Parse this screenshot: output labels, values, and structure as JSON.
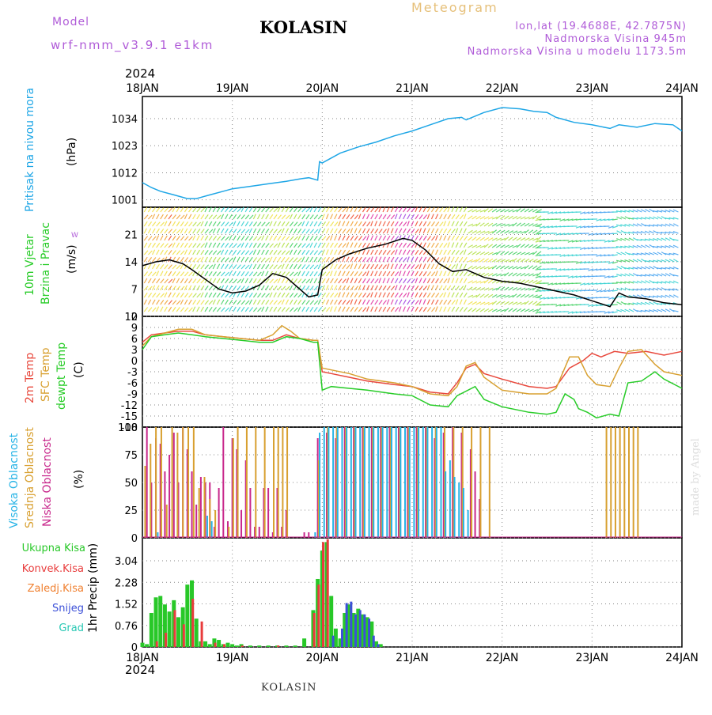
{
  "header": {
    "model_label": "Model",
    "model_version": "wrf-nmm_v3.9.1 e1km",
    "station": "KOLASIN",
    "product": "Meteogram",
    "lonlat": "lon,lat (19.4688E, 42.7875N)",
    "elevation": "Nadmorska Visina 945m",
    "model_elevation": "Nadmorska Visina u modelu 1173.5m",
    "year_top": "2024",
    "year_bottom": "2024",
    "credit": "made by Angel",
    "footer_station": "KOLASIN"
  },
  "colors": {
    "pressure": "#1ea6e6",
    "temp2m": "#e8483c",
    "sfc_temp": "#d8a030",
    "dewpoint": "#28cc28",
    "high_cloud": "#28b4e6",
    "mid_cloud": "#d8a030",
    "low_cloud": "#c8288c",
    "total_precip": "#28c828",
    "convective": "#e83c3c",
    "snow": "#3c50d8",
    "grid": "#888888"
  },
  "time_axis": {
    "labels": [
      "18JAN",
      "19JAN",
      "20JAN",
      "21JAN",
      "22JAN",
      "23JAN",
      "24JAN"
    ]
  },
  "chart_data": [
    {
      "type": "line",
      "title": "",
      "ylabel_name": "Pritisak na nivou mora",
      "ylabel_unit": "(hPa)",
      "ylim": [
        998,
        1043
      ],
      "yticks": [
        "1001",
        "1012",
        "1023",
        "1034"
      ],
      "ytick_values": [
        1001,
        1012,
        1023,
        1034
      ],
      "grid": true,
      "series": [
        {
          "x": [
            0,
            0.1,
            0.2,
            0.35,
            0.5,
            0.6,
            0.75,
            0.9,
            1.0,
            1.2,
            1.4,
            1.6,
            1.75,
            1.85,
            1.95,
            1.97,
            2.0,
            2.1,
            2.2,
            2.4,
            2.6,
            2.8,
            3.0,
            3.2,
            3.4,
            3.55,
            3.6,
            3.8,
            4.0,
            4.2,
            4.35,
            4.5,
            4.6,
            4.8,
            5.0,
            5.2,
            5.3,
            5.5,
            5.7,
            5.9,
            6.0
          ],
          "values": [
            1008,
            1006,
            1004.5,
            1003,
            1001.5,
            1001.5,
            1003,
            1004.5,
            1005.5,
            1006.5,
            1007.5,
            1008.5,
            1009.5,
            1010,
            1009,
            1016.5,
            1016,
            1018,
            1020,
            1022.5,
            1024.5,
            1027,
            1029,
            1031.5,
            1034,
            1034.5,
            1033.5,
            1036.5,
            1038.5,
            1038,
            1037,
            1036.5,
            1034.5,
            1032.5,
            1031.5,
            1030,
            1031.5,
            1030.5,
            1032,
            1031.5,
            1029
          ]
        }
      ]
    },
    {
      "type": "line",
      "title": "",
      "ylabel_name_1": "10m Vjetar",
      "ylabel_name_2": "Brzina i Pravac",
      "ylabel_unit": "(m/s)",
      "ylim": [
        0,
        28
      ],
      "yticks": [
        "0",
        "7",
        "14",
        "21"
      ],
      "ytick_values": [
        0,
        7,
        14,
        21
      ],
      "grid": true,
      "series": [
        {
          "name": "wind speed",
          "x": [
            0,
            0.15,
            0.3,
            0.45,
            0.55,
            0.7,
            0.85,
            1.0,
            1.15,
            1.3,
            1.45,
            1.6,
            1.75,
            1.85,
            1.95,
            2.0,
            2.15,
            2.3,
            2.5,
            2.7,
            2.9,
            3.0,
            3.15,
            3.3,
            3.45,
            3.6,
            3.8,
            4.0,
            4.2,
            4.4,
            4.6,
            4.8,
            5.0,
            5.2,
            5.3,
            5.4,
            5.6,
            5.8,
            6.0
          ],
          "values": [
            13,
            14,
            14.5,
            13.5,
            12,
            9.5,
            7,
            6,
            6.5,
            8,
            11,
            10,
            7,
            5,
            5.5,
            12,
            14.5,
            16,
            17.5,
            18.5,
            20,
            19.5,
            17,
            13.5,
            11.5,
            12,
            10,
            9,
            8.5,
            7.5,
            6.5,
            5.5,
            4,
            2.5,
            6,
            5,
            4.5,
            3.5,
            3
          ]
        }
      ]
    },
    {
      "type": "line",
      "title": "",
      "ylabel_names": [
        "2m Temp",
        "SFC Temp",
        "dewpt Temp"
      ],
      "ylabel_unit": "(C)",
      "ylim": [
        -18,
        12
      ],
      "yticks": [
        "-18",
        "-15",
        "-12",
        "-9",
        "-6",
        "-3",
        "0",
        "3",
        "6",
        "9",
        "12"
      ],
      "ytick_values": [
        -18,
        -15,
        -12,
        -9,
        -6,
        -3,
        0,
        3,
        6,
        9,
        12
      ],
      "grid": true,
      "series": [
        {
          "name": "2m Temp",
          "x": [
            0,
            0.1,
            0.25,
            0.4,
            0.55,
            0.7,
            0.9,
            1.1,
            1.3,
            1.45,
            1.6,
            1.75,
            1.9,
            1.95,
            2.0,
            2.1,
            2.3,
            2.5,
            2.8,
            3.0,
            3.2,
            3.4,
            3.5,
            3.6,
            3.7,
            3.8,
            4.0,
            4.3,
            4.5,
            4.6,
            4.75,
            4.9,
            5.0,
            5.1,
            5.25,
            5.4,
            5.6,
            5.8,
            6.0
          ],
          "values": [
            5,
            7,
            7.5,
            8,
            8,
            7,
            6.5,
            6,
            5.5,
            5.5,
            7,
            6,
            5.5,
            5.5,
            -3,
            -3.5,
            -4.5,
            -5.5,
            -6.5,
            -7,
            -8.5,
            -9,
            -6,
            -2,
            -1,
            -3.5,
            -5,
            -7,
            -7.5,
            -7,
            -2,
            0,
            2,
            1,
            2.5,
            2,
            2.5,
            1.5,
            2.5
          ]
        },
        {
          "name": "SFC Temp",
          "x": [
            0,
            0.1,
            0.25,
            0.4,
            0.55,
            0.7,
            0.9,
            1.1,
            1.3,
            1.45,
            1.55,
            1.65,
            1.75,
            1.9,
            1.95,
            2.0,
            2.1,
            2.3,
            2.5,
            2.8,
            3.0,
            3.2,
            3.4,
            3.5,
            3.6,
            3.7,
            3.8,
            4.0,
            4.3,
            4.5,
            4.6,
            4.75,
            4.85,
            4.95,
            5.05,
            5.2,
            5.3,
            5.4,
            5.55,
            5.7,
            5.8,
            6.0
          ],
          "values": [
            4,
            6.5,
            7.5,
            8.5,
            8.5,
            7,
            6.5,
            6,
            5.5,
            7,
            9.5,
            8,
            6,
            5.5,
            5.5,
            -2,
            -2.5,
            -3.5,
            -5,
            -6,
            -7,
            -9,
            -9.5,
            -7,
            -1.5,
            -0.5,
            -4.5,
            -8,
            -9,
            -9,
            -7.5,
            1,
            1,
            -4,
            -6.5,
            -7,
            -2,
            2.5,
            3,
            -1,
            -3,
            -4
          ]
        },
        {
          "name": "dewpt Temp",
          "x": [
            0,
            0.1,
            0.25,
            0.4,
            0.55,
            0.7,
            0.9,
            1.1,
            1.3,
            1.45,
            1.6,
            1.75,
            1.9,
            1.95,
            2.0,
            2.1,
            2.3,
            2.5,
            2.8,
            3.0,
            3.2,
            3.4,
            3.5,
            3.7,
            3.8,
            4.0,
            4.3,
            4.5,
            4.6,
            4.7,
            4.8,
            4.85,
            4.95,
            5.05,
            5.2,
            5.3,
            5.4,
            5.55,
            5.7,
            5.8,
            6.0
          ],
          "values": [
            3,
            6.5,
            7,
            7.5,
            7,
            6.5,
            6,
            5.5,
            5,
            5,
            6.5,
            6,
            5,
            5,
            -8,
            -7,
            -7.5,
            -8,
            -9,
            -9.5,
            -12,
            -12.5,
            -9.5,
            -7,
            -10.5,
            -12.5,
            -14,
            -14.5,
            -14,
            -9,
            -10.5,
            -13,
            -14,
            -15.5,
            -14.5,
            -15,
            -6,
            -5.5,
            -3,
            -5,
            -7.5
          ]
        }
      ]
    },
    {
      "type": "bar",
      "title": "",
      "ylabel_names": [
        "Visoka Oblacnost",
        "Srednja Oblacnost",
        "Niska Oblacnost"
      ],
      "ylabel_unit": "(%)",
      "ylim": [
        0,
        100
      ],
      "yticks": [
        "0",
        "25",
        "50",
        "75",
        "100"
      ],
      "ytick_values": [
        0,
        25,
        50,
        75,
        100
      ],
      "grid": true,
      "series": [
        {
          "name": "Niska Oblacnost",
          "x": [
            0.05,
            0.1,
            0.15,
            0.2,
            0.25,
            0.3,
            0.35,
            0.4,
            0.45,
            0.5,
            0.55,
            0.6,
            0.65,
            0.7,
            0.75,
            0.8,
            0.85,
            0.9,
            0.95,
            1.0,
            1.05,
            1.1,
            1.15,
            1.2,
            1.25,
            1.3,
            1.35,
            1.4,
            1.45,
            1.5,
            1.55,
            1.6,
            1.8,
            1.85,
            1.95,
            2.05,
            2.15,
            2.25,
            2.35,
            2.45,
            2.55,
            2.65,
            2.75,
            2.85,
            2.95,
            3.05,
            3.15,
            3.25,
            3.35,
            3.45,
            3.55,
            3.65,
            3.7,
            3.75
          ],
          "values": [
            100,
            50,
            90,
            85,
            60,
            75,
            95,
            50,
            100,
            80,
            60,
            30,
            55,
            50,
            50,
            10,
            45,
            100,
            15,
            90,
            80,
            25,
            70,
            45,
            10,
            10,
            45,
            45,
            5,
            45,
            10,
            25,
            5,
            5,
            90,
            95,
            90,
            100,
            100,
            100,
            100,
            100,
            100,
            100,
            100,
            100,
            100,
            90,
            95,
            100,
            95,
            80,
            60,
            35
          ]
        },
        {
          "name": "Srednja Oblacnost",
          "x": [
            0.02,
            0.08,
            0.14,
            0.2,
            0.26,
            0.32,
            0.38,
            0.44,
            0.5,
            0.56,
            0.62,
            0.68,
            0.74,
            0.8,
            0.95,
            1.0,
            1.05,
            1.15,
            1.25,
            1.35,
            1.45,
            1.5,
            1.55,
            1.6,
            1.95,
            2.05,
            2.15,
            2.25,
            2.35,
            2.45,
            2.55,
            2.65,
            2.75,
            2.85,
            2.95,
            3.05,
            3.15,
            3.25,
            3.35,
            3.45,
            3.55,
            3.65,
            3.75,
            3.85,
            5.15,
            5.2,
            5.25,
            5.3,
            5.35,
            5.4,
            5.45,
            5.5
          ],
          "values": [
            65,
            85,
            100,
            100,
            30,
            100,
            95,
            100,
            100,
            100,
            45,
            55,
            35,
            25,
            10,
            90,
            100,
            100,
            100,
            100,
            100,
            100,
            100,
            100,
            70,
            100,
            100,
            100,
            100,
            100,
            100,
            100,
            100,
            100,
            100,
            100,
            100,
            100,
            100,
            100,
            100,
            100,
            100,
            100,
            100,
            100,
            100,
            100,
            100,
            100,
            100,
            100
          ]
        },
        {
          "name": "Visoka Oblacnost",
          "x": [
            0.15,
            0.7,
            0.75,
            1.9,
            1.95,
            2.0,
            2.05,
            2.1,
            2.15,
            2.2,
            2.25,
            2.3,
            2.35,
            2.4,
            2.45,
            2.5,
            2.55,
            2.6,
            2.65,
            2.7,
            2.75,
            2.8,
            2.85,
            2.9,
            2.95,
            3.0,
            3.05,
            3.1,
            3.15,
            3.2,
            3.25,
            3.3,
            3.35,
            3.4,
            3.45,
            3.5,
            3.55,
            3.6
          ],
          "values": [
            5,
            20,
            15,
            5,
            95,
            100,
            100,
            100,
            100,
            100,
            100,
            100,
            100,
            100,
            100,
            100,
            100,
            100,
            100,
            100,
            100,
            100,
            100,
            100,
            100,
            100,
            100,
            100,
            100,
            100,
            100,
            100,
            60,
            70,
            55,
            50,
            45,
            25
          ]
        }
      ]
    },
    {
      "type": "bar",
      "title": "",
      "legend": [
        "Ukupna Kisa",
        "Konvek.Kisa",
        "Zaledj.Kisa",
        "Snijeg",
        "Grad"
      ],
      "ylabel_name": "1hr Precip",
      "ylabel_unit": "(mm)",
      "ylim": [
        0,
        3.85
      ],
      "yticks": [
        "0",
        "0.76",
        "1.52",
        "2.28",
        "3.04"
      ],
      "ytick_values": [
        0,
        0.76,
        1.52,
        2.28,
        3.04
      ],
      "grid": true,
      "series": [
        {
          "name": "Ukupna Kisa",
          "x": [
            0.0,
            0.05,
            0.1,
            0.15,
            0.2,
            0.25,
            0.3,
            0.35,
            0.4,
            0.45,
            0.5,
            0.55,
            0.6,
            0.65,
            0.7,
            0.75,
            0.8,
            0.85,
            0.9,
            0.95,
            1.0,
            1.05,
            1.1,
            1.2,
            1.3,
            1.4,
            1.5,
            1.6,
            1.7,
            1.8,
            1.9,
            1.95,
            2.0,
            2.05,
            2.1,
            2.15,
            2.2,
            2.25,
            2.3,
            2.35,
            2.4,
            2.45,
            2.5,
            2.55,
            2.6,
            2.65
          ],
          "values": [
            0.15,
            0.1,
            1.2,
            1.75,
            1.8,
            1.5,
            1.25,
            1.65,
            1.05,
            1.4,
            2.2,
            2.35,
            1.0,
            0.2,
            0.2,
            0.1,
            0.3,
            0.25,
            0.1,
            0.15,
            0.1,
            0.05,
            0.1,
            0.05,
            0.05,
            0.05,
            0.05,
            0.05,
            0.05,
            0.3,
            1.3,
            2.4,
            3.4,
            3.7,
            1.8,
            0.65,
            0.3,
            1.2,
            1.5,
            1.2,
            1.35,
            1.15,
            1.05,
            0.9,
            0.2,
            0.1
          ]
        },
        {
          "name": "Konvek.Kisa",
          "x": [
            0.15,
            0.25,
            0.35,
            0.45,
            0.55,
            0.65,
            0.8,
            0.9,
            1.1,
            1.5,
            1.9,
            1.95,
            2.0,
            2.05
          ],
          "values": [
            0.2,
            0.5,
            1.3,
            0.8,
            1.7,
            0.9,
            0.15,
            0.1,
            0.05,
            0.05,
            1.2,
            2.2,
            3.7,
            3.8
          ]
        },
        {
          "name": "Snijeg",
          "x": [
            2.1,
            2.2,
            2.25,
            2.3,
            2.35,
            2.4,
            2.45,
            2.5,
            2.55,
            2.6
          ],
          "values": [
            0.4,
            0.65,
            1.55,
            1.6,
            1.15,
            1.3,
            1.15,
            1.0,
            0.4,
            0.1
          ]
        }
      ]
    }
  ]
}
